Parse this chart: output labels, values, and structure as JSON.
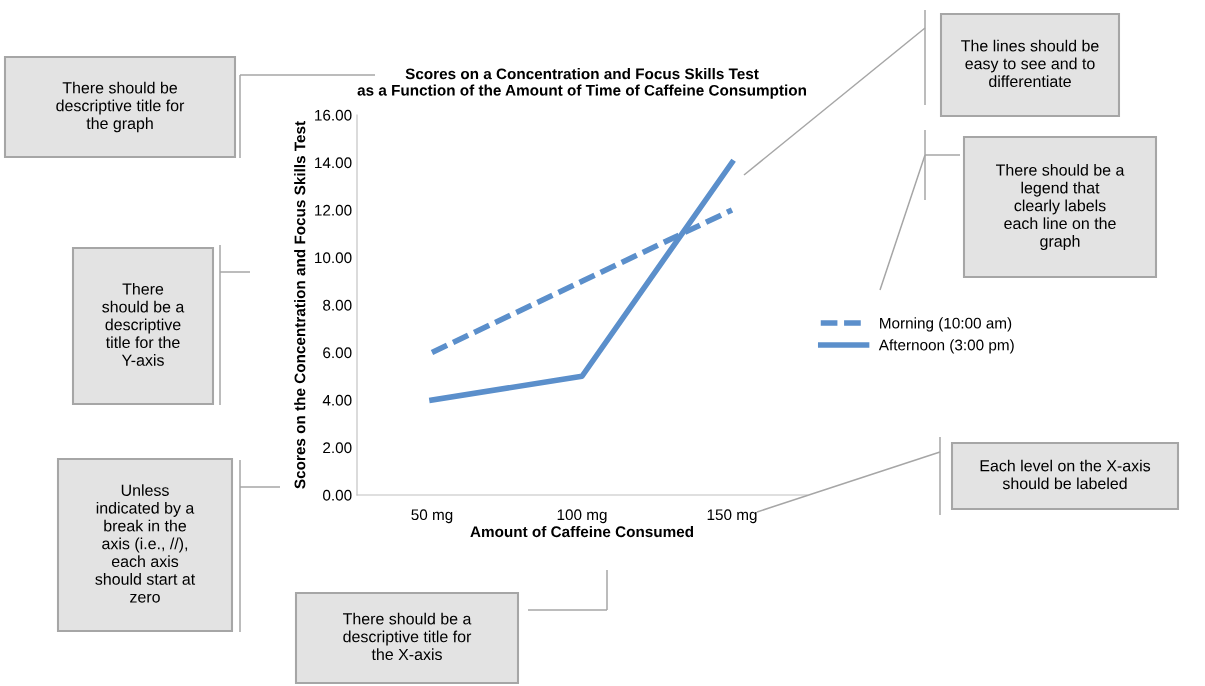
{
  "chart_data": {
    "type": "line",
    "title": "Scores on a Concentration and Focus Skills Test\nas a Function of the Amount of Time of Caffeine Consumption",
    "xlabel": "Amount of Caffeine Consumed",
    "ylabel": "Scores on the Concentration and Focus Skills Test",
    "categories": [
      "50 mg",
      "100 mg",
      "150 mg"
    ],
    "series": [
      {
        "name": "Morning (10:00 am)",
        "color": "#5b8fcb",
        "line_style": "dashed",
        "values": [
          6,
          9,
          12
        ]
      },
      {
        "name": "Afternoon (3:00 pm)",
        "color": "#5b8fcb",
        "line_style": "solid",
        "values": [
          4,
          5,
          14
        ]
      }
    ],
    "ylim": [
      0,
      16
    ],
    "yticks": [
      {
        "value": 0,
        "label": "0.00"
      },
      {
        "value": 2,
        "label": "2.00"
      },
      {
        "value": 4,
        "label": "4.00"
      },
      {
        "value": 6,
        "label": "6.00"
      },
      {
        "value": 8,
        "label": "8.00"
      },
      {
        "value": 10,
        "label": "10.00"
      },
      {
        "value": 12,
        "label": "12.00"
      },
      {
        "value": 14,
        "label": "14.00"
      },
      {
        "value": 16,
        "label": "16.00"
      }
    ],
    "grid": false,
    "legend": "right",
    "marker": "none",
    "annotations": [
      "There should be\ndescriptive title for\nthe graph",
      "There\nshould be a\ndescriptive\ntitle for the\nY-axis",
      "Unless\nindicated by a\nbreak in the\naxis (i.e., //),\neach axis\nshould start at\nzero",
      "There should be a\ndescriptive title for\nthe X-axis",
      "The lines should be\neasy to see and to\ndifferentiate",
      "There should be a\nlegend that\nclearly labels\neach line on the\ngraph",
      "Each level on the X-axis\nshould be labeled"
    ]
  }
}
